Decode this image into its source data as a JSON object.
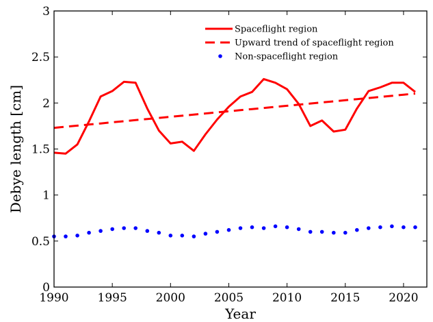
{
  "chart_data": {
    "type": "line",
    "xlabel": "Year",
    "ylabel": "Debye length [cm]",
    "xlim": [
      1990,
      2022
    ],
    "ylim": [
      0,
      3
    ],
    "xticks": [
      1990,
      1995,
      2000,
      2005,
      2010,
      2015,
      2020
    ],
    "yticks": [
      0,
      0.5,
      1,
      1.5,
      2,
      2.5,
      3
    ],
    "ytick_labels": [
      "0",
      "0.5",
      "1",
      "1.5",
      "2",
      "2.5",
      "3"
    ],
    "legend_position": "top-right",
    "grid": false,
    "x": [
      1990,
      1991,
      1992,
      1993,
      1994,
      1995,
      1996,
      1997,
      1998,
      1999,
      2000,
      2001,
      2002,
      2003,
      2004,
      2005,
      2006,
      2007,
      2008,
      2009,
      2010,
      2011,
      2012,
      2013,
      2014,
      2015,
      2016,
      2017,
      2018,
      2019,
      2020,
      2021
    ],
    "series": [
      {
        "name": "Spaceflight region",
        "style": "solid",
        "color": "#ff0000",
        "values": [
          1.46,
          1.45,
          1.55,
          1.8,
          2.07,
          2.13,
          2.23,
          2.22,
          1.94,
          1.7,
          1.56,
          1.58,
          1.48,
          1.66,
          1.82,
          1.96,
          2.07,
          2.12,
          2.26,
          2.22,
          2.15,
          1.99,
          1.75,
          1.81,
          1.69,
          1.71,
          1.94,
          2.13,
          2.17,
          2.22,
          2.22,
          2.12
        ]
      },
      {
        "name": "Upward trend of spaceflight region",
        "style": "dashed",
        "color": "#ff0000",
        "values": [
          1.73,
          1.742,
          1.754,
          1.766,
          1.778,
          1.79,
          1.802,
          1.814,
          1.826,
          1.838,
          1.85,
          1.862,
          1.874,
          1.886,
          1.898,
          1.91,
          1.922,
          1.934,
          1.946,
          1.958,
          1.97,
          1.982,
          1.994,
          2.006,
          2.018,
          2.03,
          2.042,
          2.054,
          2.066,
          2.078,
          2.09,
          2.102
        ]
      },
      {
        "name": "Non-spaceflight region",
        "style": "dots",
        "color": "#0000ff",
        "values": [
          0.55,
          0.55,
          0.56,
          0.59,
          0.61,
          0.63,
          0.64,
          0.64,
          0.61,
          0.59,
          0.56,
          0.56,
          0.55,
          0.58,
          0.6,
          0.62,
          0.64,
          0.65,
          0.64,
          0.66,
          0.65,
          0.63,
          0.6,
          0.6,
          0.59,
          0.59,
          0.62,
          0.64,
          0.65,
          0.66,
          0.65,
          0.65
        ]
      }
    ]
  }
}
